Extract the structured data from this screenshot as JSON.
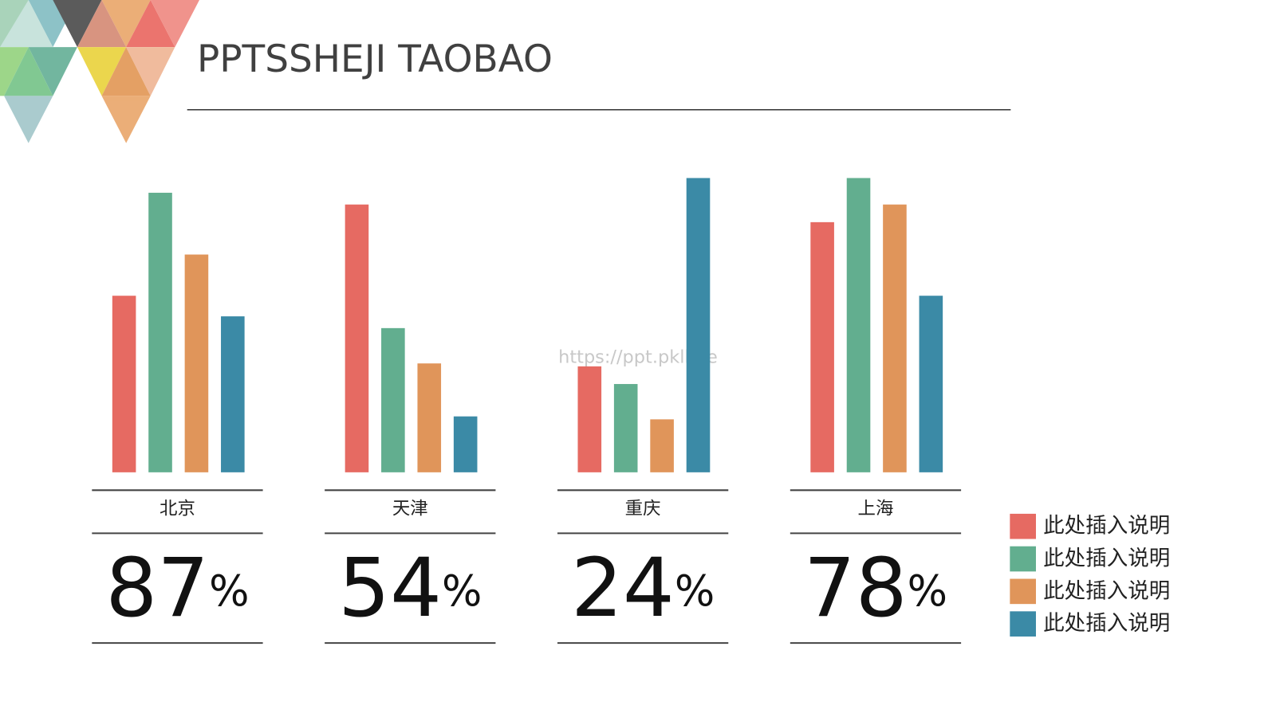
{
  "chart_data": {
    "type": "bar",
    "title": "PPTSSHEJI TAOBAO",
    "watermark": "https://ppt.pkll.de",
    "categories": [
      "北京",
      "天津",
      "重庆",
      "上海"
    ],
    "percent_labels": [
      87,
      54,
      24,
      78
    ],
    "percent_unit": "%",
    "ylim": [
      0,
      100
    ],
    "legend": "right",
    "series": [
      {
        "name": "此处插入说明",
        "color": "#e66a62",
        "values": [
          60,
          91,
          36,
          85
        ]
      },
      {
        "name": "此处插入说明",
        "color": "#62ae8f",
        "values": [
          95,
          49,
          30,
          100
        ]
      },
      {
        "name": "此处插入说明",
        "color": "#e0955a",
        "values": [
          74,
          37,
          18,
          91
        ]
      },
      {
        "name": "此处插入说明",
        "color": "#3b8aa6",
        "values": [
          53,
          19,
          100,
          60
        ]
      }
    ]
  }
}
